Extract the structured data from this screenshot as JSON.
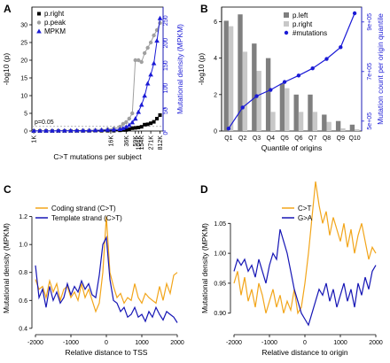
{
  "chart_data": [
    {
      "panel": "A",
      "type": "line",
      "categories": [
        "1K",
        "16K",
        "36K",
        "59K",
        "104K",
        "154K",
        "271K",
        "812K"
      ],
      "x_pos": [
        0,
        12.5,
        15,
        16.5,
        17,
        17.5,
        19,
        20.5
      ],
      "xlim": [
        -0.3,
        21
      ],
      "xlabel": "C>T mutations per subject",
      "ylabel_left": "-log10 (p)",
      "ylabel_right": "Mutational density (MPKM)",
      "ylim_left": [
        0,
        35
      ],
      "ylim_right": [
        0,
        275
      ],
      "left_ticks": [
        0,
        5,
        10,
        15,
        20,
        25,
        30
      ],
      "right_ticks": [
        0,
        50,
        100,
        150,
        200,
        250
      ],
      "threshold_label": "p=0.05",
      "threshold_value": 1.3,
      "series": [
        {
          "name": "p.right",
          "axis": "left",
          "color": "#000000",
          "marker": "square",
          "x": [
            0,
            1,
            2,
            3,
            4,
            5,
            6,
            7,
            8,
            9,
            10,
            11,
            12,
            13,
            14,
            14.5,
            15,
            15.5,
            16,
            16.5,
            17,
            17.5,
            18,
            18.5,
            19,
            19.5,
            20,
            20.5
          ],
          "y": [
            0,
            0,
            0,
            0,
            0,
            0,
            0,
            0,
            0.05,
            0.05,
            0.1,
            0.1,
            0.1,
            0.1,
            0.2,
            0.3,
            0.3,
            0.5,
            0.8,
            0.9,
            1.0,
            1.2,
            1.8,
            1.9,
            2.2,
            2.6,
            3.5,
            4.5
          ]
        },
        {
          "name": "p.peak",
          "axis": "left",
          "color": "#a0a0a0",
          "marker": "circle",
          "x": [
            0,
            1,
            2,
            3,
            4,
            5,
            6,
            7,
            8,
            9,
            10,
            11,
            12,
            13,
            14,
            14.5,
            15,
            15.5,
            16,
            16.5,
            17,
            17.5,
            18,
            18.5,
            19,
            19.5,
            20,
            20.5
          ],
          "y": [
            0,
            0,
            0,
            0,
            0,
            0,
            0,
            0,
            0.1,
            0.1,
            0.2,
            0.3,
            0.5,
            0.7,
            1.2,
            2,
            2.5,
            3.5,
            5,
            20,
            20,
            19.5,
            22,
            23.5,
            25,
            27,
            28.5,
            30.5
          ]
        },
        {
          "name": "MPKM",
          "axis": "right",
          "color": "#1a1ad6",
          "marker": "triangle",
          "x": [
            0,
            1,
            2,
            3,
            4,
            5,
            6,
            7,
            8,
            9,
            10,
            11,
            12,
            13,
            14,
            14.5,
            15,
            15.5,
            16,
            16.5,
            17,
            17.5,
            18,
            18.5,
            19,
            19.5,
            20,
            20.5
          ],
          "y": [
            0.5,
            0.5,
            0.6,
            0.6,
            0.7,
            0.7,
            0.8,
            0.9,
            1,
            1.2,
            1.5,
            2,
            2.5,
            3,
            4,
            6,
            9,
            13,
            19,
            27,
            42,
            58,
            78,
            105,
            125,
            150,
            200,
            250
          ]
        }
      ]
    },
    {
      "panel": "B",
      "type": "bar",
      "categories": [
        "Q1",
        "Q2",
        "Q3",
        "Q4",
        "Q5",
        "Q6",
        "Q7",
        "Q8",
        "Q9",
        "Q10"
      ],
      "xlabel": "Quantile of origins",
      "ylabel_left": "-log10 (p)",
      "ylabel_right": "Mutation count per origin quantile",
      "ylim_left": [
        0,
        6.8
      ],
      "ylim_right": [
        460000,
        960000
      ],
      "left_ticks": [
        0,
        2,
        4,
        6
      ],
      "right_ticks": [
        500000,
        700000,
        900000
      ],
      "right_tick_labels": [
        "5e+05",
        "7e+05",
        "9e+05"
      ],
      "series": [
        {
          "name": "p.left",
          "axis": "left",
          "color": "#7f7f7f",
          "values": [
            6.05,
            6.4,
            4.8,
            4.0,
            2.6,
            2.0,
            2.0,
            0.9,
            0.55,
            0.35
          ]
        },
        {
          "name": "p.right",
          "axis": "left",
          "color": "#c8c8c8",
          "values": [
            5.75,
            4.35,
            3.3,
            1.05,
            2.35,
            1.05,
            1.05,
            0.5,
            0.15,
            0.1
          ]
        },
        {
          "name": "#mutations",
          "axis": "right",
          "color": "#1a1ad6",
          "marker": "circle",
          "values": [
            470000,
            555000,
            601000,
            626000,
            658000,
            684000,
            713000,
            751000,
            798000,
            935000
          ]
        }
      ]
    },
    {
      "panel": "C",
      "type": "line",
      "xlabel": "Relative distance to TSS",
      "ylabel": "Mutational density (MPKM)",
      "xlim": [
        -2100,
        2100
      ],
      "ylim": [
        0.38,
        1.28
      ],
      "x_ticks": [
        -2000,
        -1000,
        0,
        1000,
        2000
      ],
      "y_ticks": [
        0.4,
        0.6,
        0.8,
        1.0,
        1.2
      ],
      "series": [
        {
          "name": "Coding strand (C>T)",
          "color": "#f2a51a",
          "x": [
            -2000,
            -1900,
            -1800,
            -1700,
            -1600,
            -1500,
            -1400,
            -1300,
            -1200,
            -1100,
            -1000,
            -900,
            -800,
            -700,
            -600,
            -500,
            -400,
            -300,
            -200,
            -100,
            0,
            100,
            200,
            300,
            400,
            500,
            600,
            700,
            800,
            900,
            1000,
            1100,
            1200,
            1300,
            1400,
            1500,
            1600,
            1700,
            1800,
            1900,
            2000
          ],
          "y": [
            0.75,
            0.68,
            0.7,
            0.62,
            0.74,
            0.66,
            0.72,
            0.6,
            0.68,
            0.7,
            0.62,
            0.66,
            0.6,
            0.72,
            0.62,
            0.68,
            0.6,
            0.52,
            0.58,
            0.8,
            1.2,
            0.8,
            0.7,
            0.62,
            0.65,
            0.58,
            0.62,
            0.6,
            0.72,
            0.62,
            0.58,
            0.65,
            0.62,
            0.6,
            0.58,
            0.7,
            0.6,
            0.72,
            0.65,
            0.78,
            0.8
          ]
        },
        {
          "name": "Template strand (C>T)",
          "color": "#1515b5",
          "x": [
            -2000,
            -1900,
            -1800,
            -1700,
            -1600,
            -1500,
            -1400,
            -1300,
            -1200,
            -1100,
            -1000,
            -900,
            -800,
            -700,
            -600,
            -500,
            -400,
            -300,
            -200,
            -100,
            0,
            100,
            200,
            300,
            400,
            500,
            600,
            700,
            800,
            900,
            1000,
            1100,
            1200,
            1300,
            1400,
            1500,
            1600,
            1700,
            1800,
            1900,
            2000
          ],
          "y": [
            0.85,
            0.62,
            0.68,
            0.55,
            0.7,
            0.6,
            0.66,
            0.58,
            0.62,
            0.72,
            0.64,
            0.7,
            0.66,
            0.74,
            0.68,
            0.72,
            0.64,
            0.62,
            0.78,
            1.0,
            1.05,
            0.75,
            0.6,
            0.58,
            0.52,
            0.55,
            0.48,
            0.5,
            0.55,
            0.48,
            0.5,
            0.45,
            0.52,
            0.48,
            0.55,
            0.5,
            0.46,
            0.52,
            0.5,
            0.48,
            0.44
          ]
        }
      ]
    },
    {
      "panel": "D",
      "type": "line",
      "xlabel": "Relative distance to origin",
      "ylabel": "Mutational density (MPKM)",
      "xlim": [
        -2100,
        2100
      ],
      "ylim": [
        0.87,
        1.08
      ],
      "x_ticks": [
        -2000,
        -1000,
        0,
        1000,
        2000
      ],
      "y_ticks": [
        0.9,
        0.95,
        1.0,
        1.05
      ],
      "series": [
        {
          "name": "C>T",
          "color": "#f2a51a",
          "x": [
            -2000,
            -1900,
            -1800,
            -1700,
            -1600,
            -1500,
            -1400,
            -1300,
            -1200,
            -1100,
            -1000,
            -900,
            -800,
            -700,
            -600,
            -500,
            -400,
            -300,
            -200,
            -100,
            0,
            100,
            200,
            300,
            400,
            500,
            600,
            700,
            800,
            900,
            1000,
            1100,
            1200,
            1300,
            1400,
            1500,
            1600,
            1700,
            1800,
            1900,
            2000
          ],
          "y": [
            0.95,
            0.97,
            0.93,
            0.96,
            0.92,
            0.94,
            0.91,
            0.95,
            0.93,
            0.9,
            0.92,
            0.94,
            0.91,
            0.93,
            0.9,
            0.92,
            0.905,
            0.94,
            0.9,
            0.91,
            0.95,
            1.0,
            1.06,
            1.12,
            1.08,
            1.05,
            1.07,
            1.03,
            1.06,
            1.04,
            1.02,
            1.05,
            1.01,
            1.04,
            1.0,
            1.03,
            1.05,
            1.02,
            0.99,
            1.01,
            1.0
          ]
        },
        {
          "name": "G>A",
          "color": "#1515b5",
          "x": [
            -2000,
            -1900,
            -1800,
            -1700,
            -1600,
            -1500,
            -1400,
            -1300,
            -1200,
            -1100,
            -1000,
            -900,
            -800,
            -700,
            -600,
            -500,
            -400,
            -300,
            -200,
            -100,
            0,
            100,
            200,
            300,
            400,
            500,
            600,
            700,
            800,
            900,
            1000,
            1100,
            1200,
            1300,
            1400,
            1500,
            1600,
            1700,
            1800,
            1900,
            2000
          ],
          "y": [
            0.97,
            0.99,
            0.98,
            0.99,
            0.97,
            0.98,
            0.96,
            0.99,
            0.97,
            0.95,
            0.98,
            1.0,
            0.99,
            1.04,
            1.02,
            1.0,
            0.97,
            0.94,
            0.92,
            0.9,
            0.89,
            0.88,
            0.9,
            0.92,
            0.94,
            0.93,
            0.95,
            0.92,
            0.94,
            0.91,
            0.93,
            0.95,
            0.92,
            0.94,
            0.91,
            0.95,
            0.93,
            0.96,
            0.94,
            0.97,
            0.98
          ]
        }
      ]
    }
  ]
}
